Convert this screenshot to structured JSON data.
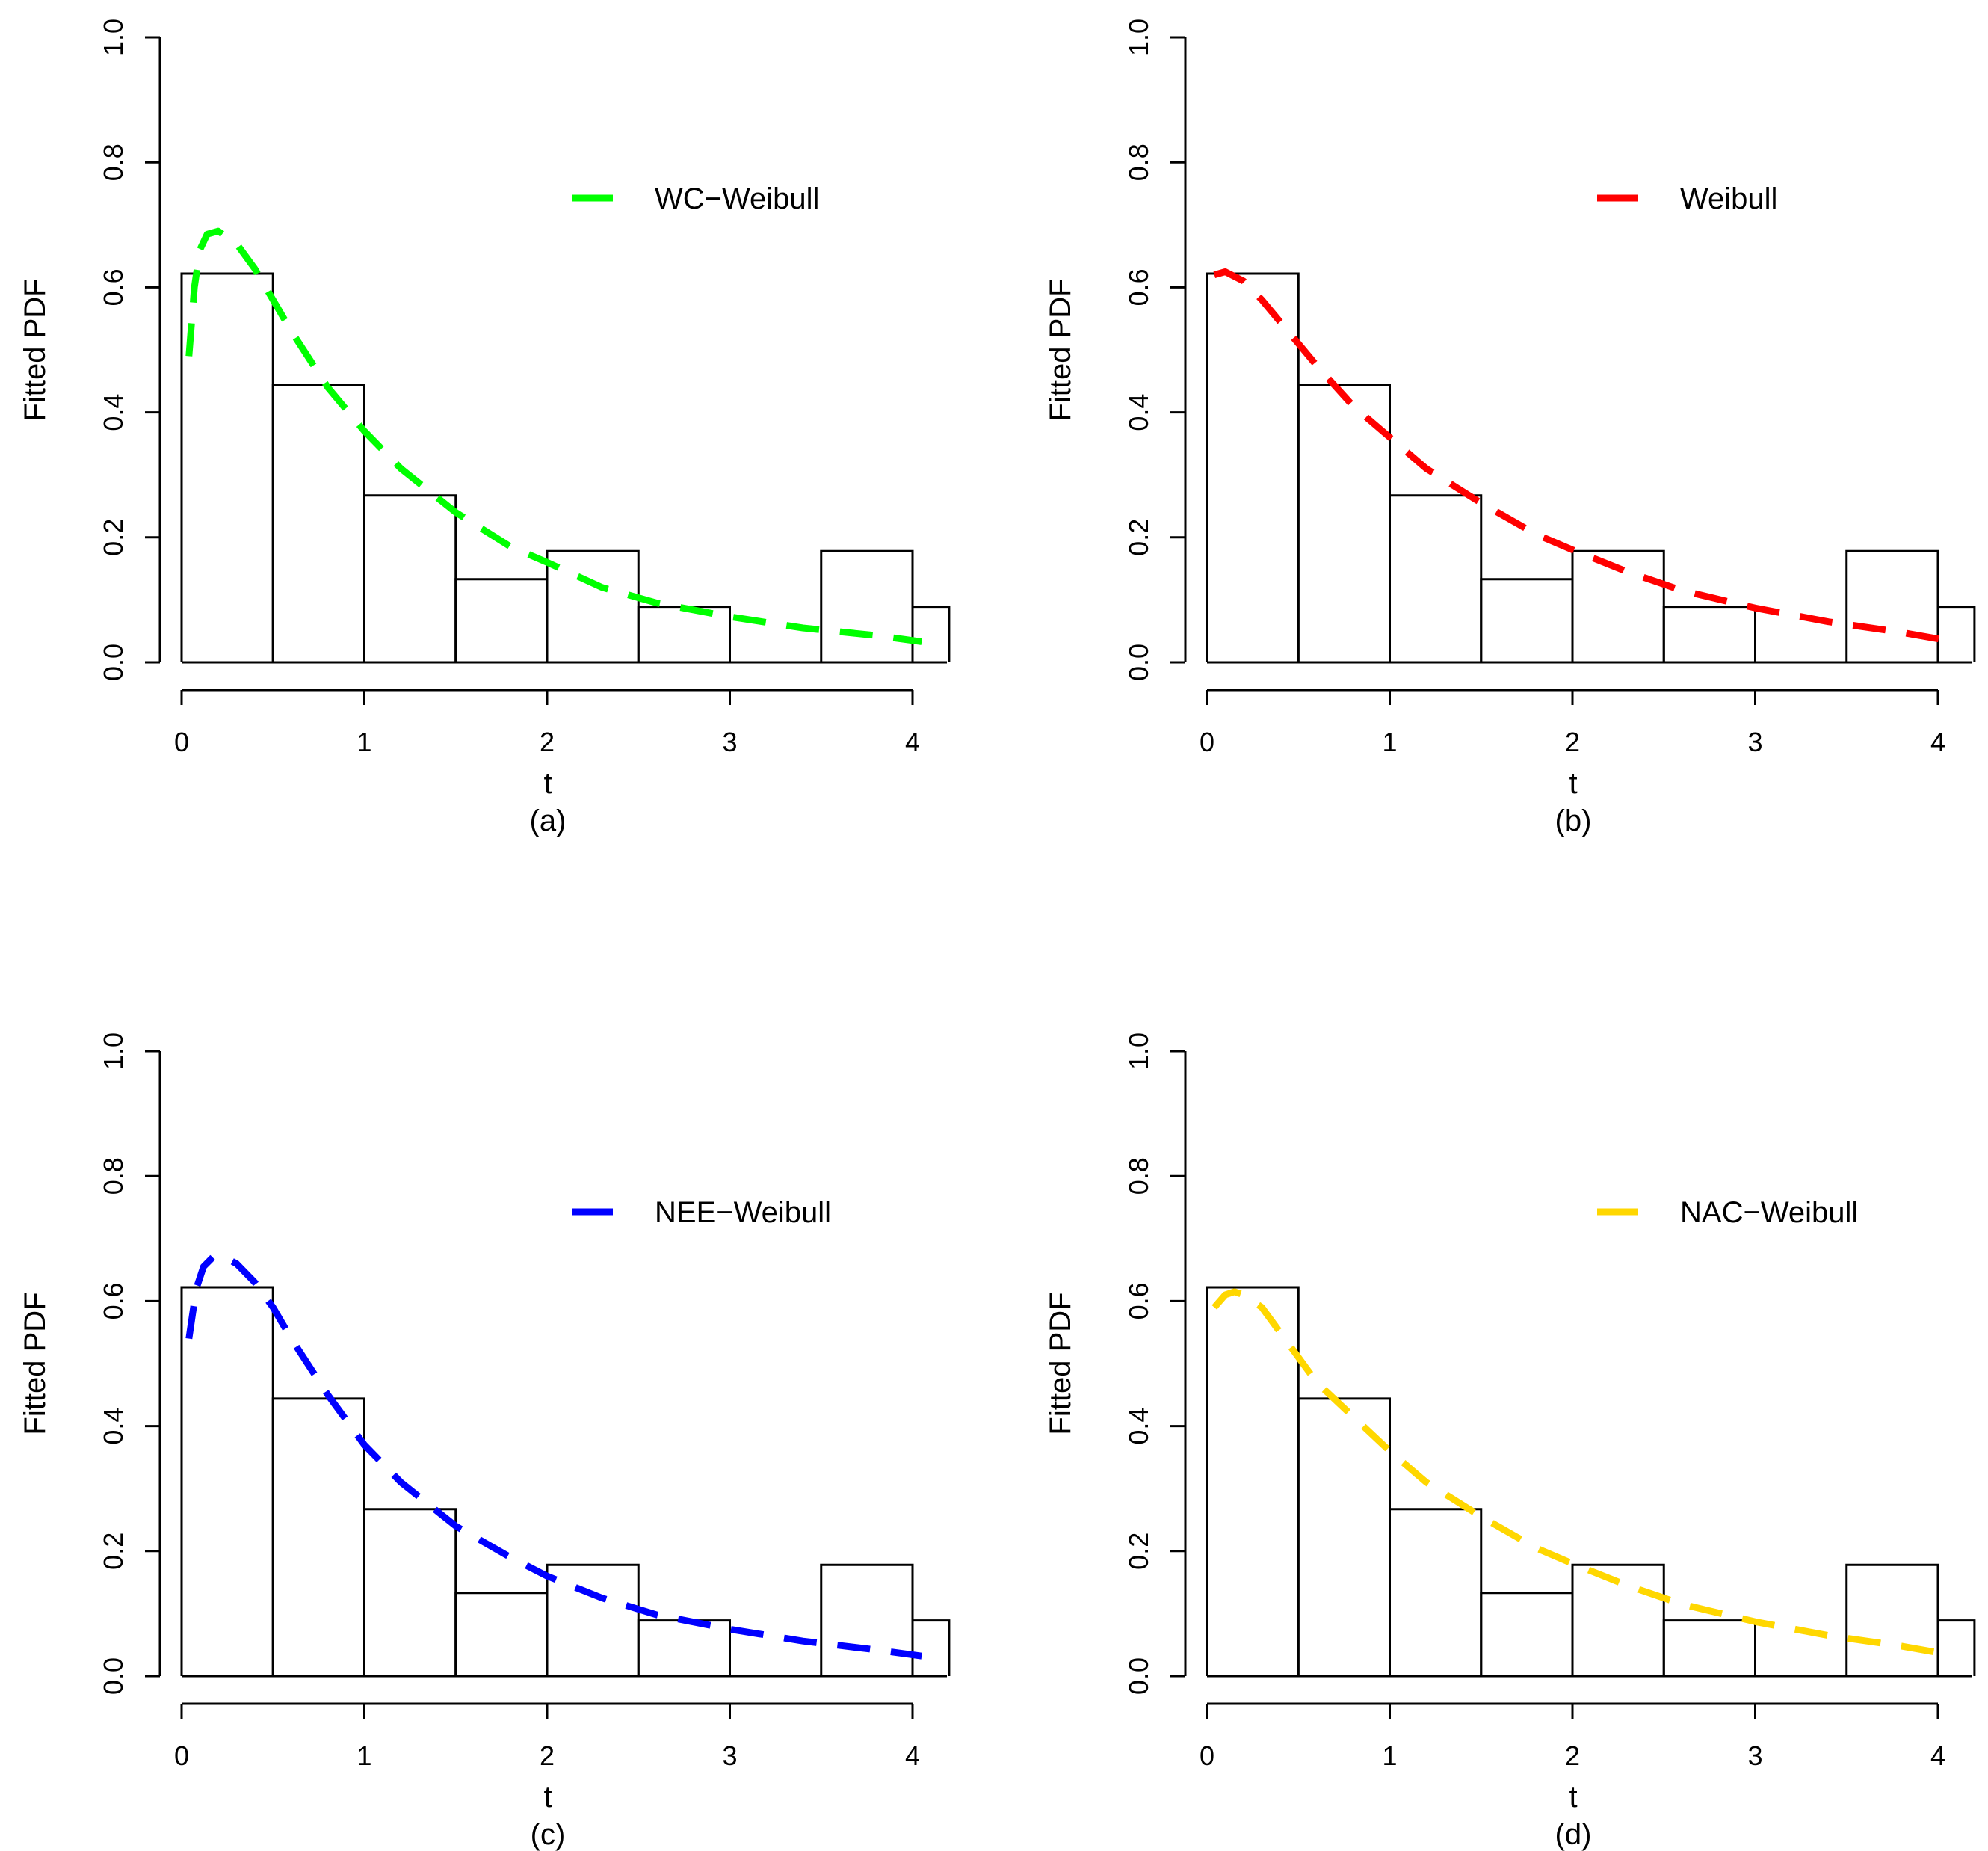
{
  "chart_data": [
    {
      "type": "histogram",
      "panel_label": "(a)",
      "xlabel": "t",
      "ylabel": "Fitted PDF",
      "xlim": [
        0,
        4
      ],
      "ylim": [
        0,
        1
      ],
      "x_ticks": [
        "0",
        "1",
        "2",
        "3",
        "4"
      ],
      "y_ticks": [
        "0.0",
        "0.2",
        "0.4",
        "0.6",
        "0.8",
        "1.0"
      ],
      "bins": [
        0,
        0.5,
        1,
        1.5,
        2,
        2.5,
        3,
        3.5,
        4,
        4.2
      ],
      "densities": [
        0.622,
        0.444,
        0.267,
        0.133,
        0.178,
        0.089,
        0,
        0.178,
        0.089
      ],
      "series": [
        {
          "name": "WC−Weibull",
          "color": "#00ff00",
          "x": [
            0.04,
            0.07,
            0.1,
            0.14,
            0.2,
            0.3,
            0.4,
            0.5,
            0.6,
            0.8,
            1.0,
            1.2,
            1.5,
            1.8,
            2.0,
            2.3,
            2.6,
            3.0,
            3.4,
            3.8,
            4.05
          ],
          "y": [
            0.49,
            0.6,
            0.66,
            0.685,
            0.69,
            0.67,
            0.63,
            0.58,
            0.53,
            0.44,
            0.37,
            0.31,
            0.24,
            0.185,
            0.16,
            0.12,
            0.095,
            0.073,
            0.055,
            0.043,
            0.033
          ]
        }
      ]
    },
    {
      "type": "histogram",
      "panel_label": "(b)",
      "xlabel": "t",
      "ylabel": "Fitted PDF",
      "xlim": [
        0,
        4
      ],
      "ylim": [
        0,
        1
      ],
      "x_ticks": [
        "0",
        "1",
        "2",
        "3",
        "4"
      ],
      "y_ticks": [
        "0.0",
        "0.2",
        "0.4",
        "0.6",
        "0.8",
        "1.0"
      ],
      "bins": [
        0,
        0.5,
        1,
        1.5,
        2,
        2.5,
        3,
        3.5,
        4,
        4.2
      ],
      "densities": [
        0.622,
        0.444,
        0.267,
        0.133,
        0.178,
        0.089,
        0,
        0.178,
        0.089
      ],
      "series": [
        {
          "name": "Weibull",
          "color": "#ff0000",
          "x": [
            0.04,
            0.1,
            0.2,
            0.3,
            0.4,
            0.5,
            0.6,
            0.8,
            1.0,
            1.2,
            1.5,
            1.8,
            2.0,
            2.3,
            2.6,
            3.0,
            3.4,
            3.8,
            4.05
          ],
          "y": [
            0.62,
            0.625,
            0.61,
            0.58,
            0.545,
            0.51,
            0.475,
            0.41,
            0.36,
            0.31,
            0.255,
            0.205,
            0.18,
            0.145,
            0.115,
            0.087,
            0.065,
            0.048,
            0.035
          ]
        }
      ]
    },
    {
      "type": "histogram",
      "panel_label": "(c)",
      "xlabel": "t",
      "ylabel": "Fitted PDF",
      "xlim": [
        0,
        4
      ],
      "ylim": [
        0,
        1
      ],
      "x_ticks": [
        "0",
        "1",
        "2",
        "3",
        "4"
      ],
      "y_ticks": [
        "0.0",
        "0.2",
        "0.4",
        "0.6",
        "0.8",
        "1.0"
      ],
      "bins": [
        0,
        0.5,
        1,
        1.5,
        2,
        2.5,
        3,
        3.5,
        4,
        4.2
      ],
      "densities": [
        0.622,
        0.444,
        0.267,
        0.133,
        0.178,
        0.089,
        0,
        0.178,
        0.089
      ],
      "series": [
        {
          "name": "NEE−Weibull",
          "color": "#0000ff",
          "x": [
            0.04,
            0.08,
            0.12,
            0.17,
            0.22,
            0.3,
            0.4,
            0.5,
            0.6,
            0.8,
            1.0,
            1.2,
            1.5,
            1.8,
            2.0,
            2.3,
            2.6,
            3.0,
            3.4,
            3.8,
            4.05
          ],
          "y": [
            0.54,
            0.62,
            0.655,
            0.67,
            0.672,
            0.66,
            0.63,
            0.59,
            0.54,
            0.45,
            0.37,
            0.31,
            0.24,
            0.19,
            0.16,
            0.125,
            0.098,
            0.075,
            0.056,
            0.042,
            0.032
          ]
        }
      ]
    },
    {
      "type": "histogram",
      "panel_label": "(d)",
      "xlabel": "t",
      "ylabel": "Fitted PDF",
      "xlim": [
        0,
        4
      ],
      "ylim": [
        0,
        1
      ],
      "x_ticks": [
        "0",
        "1",
        "2",
        "3",
        "4"
      ],
      "y_ticks": [
        "0.0",
        "0.2",
        "0.4",
        "0.6",
        "0.8",
        "1.0"
      ],
      "bins": [
        0,
        0.5,
        1,
        1.5,
        2,
        2.5,
        3,
        3.5,
        4,
        4.2
      ],
      "densities": [
        0.622,
        0.444,
        0.267,
        0.133,
        0.178,
        0.089,
        0,
        0.178,
        0.089
      ],
      "series": [
        {
          "name": "NAC−Weibull",
          "color": "#ffd700",
          "x": [
            0.04,
            0.1,
            0.15,
            0.2,
            0.3,
            0.4,
            0.5,
            0.6,
            0.8,
            1.0,
            1.2,
            1.5,
            1.8,
            2.0,
            2.3,
            2.6,
            3.0,
            3.4,
            3.8,
            4.05
          ],
          "y": [
            0.59,
            0.61,
            0.615,
            0.61,
            0.59,
            0.55,
            0.51,
            0.47,
            0.415,
            0.36,
            0.31,
            0.255,
            0.205,
            0.18,
            0.145,
            0.115,
            0.087,
            0.065,
            0.048,
            0.035
          ]
        }
      ]
    }
  ]
}
